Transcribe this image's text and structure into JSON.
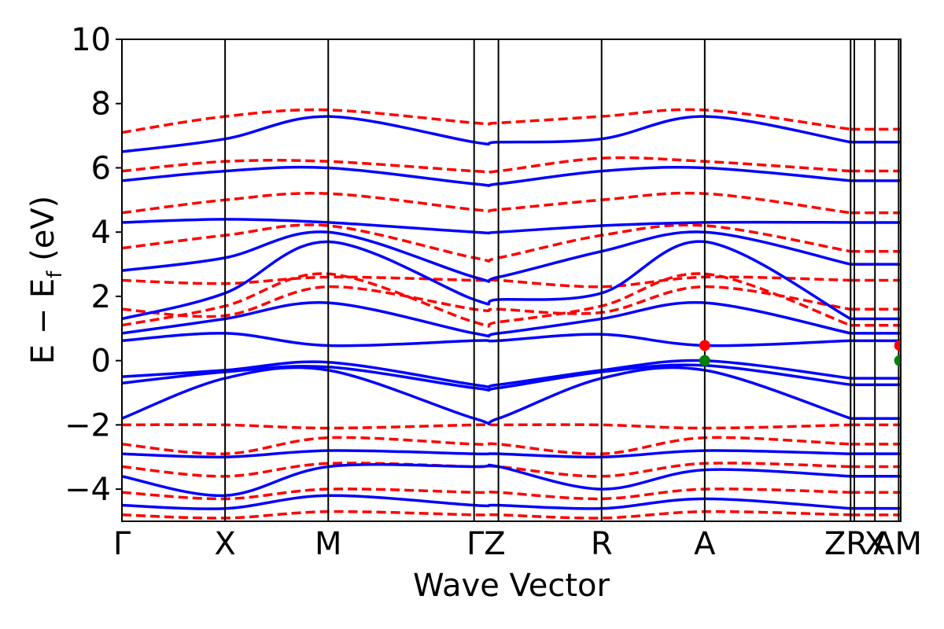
{
  "chart_data": {
    "type": "line",
    "xlabel": "Wave Vector",
    "ylabel_main": "E − E",
    "ylabel_sub": "f",
    "ylabel_tail": " (eV)",
    "ylim": [
      -5,
      10
    ],
    "yticks": [
      -4,
      -2,
      0,
      2,
      4,
      6,
      8,
      10
    ],
    "ytick_labels": [
      "−4",
      "−2",
      "0",
      "2",
      "4",
      "6",
      "8",
      "10"
    ],
    "grid": false,
    "kpoints": [
      {
        "label": "Γ",
        "x": 0.0
      },
      {
        "label": "X",
        "x": 1.0
      },
      {
        "label": "M",
        "x": 2.0
      },
      {
        "label": "Γ",
        "x": 3.414
      },
      {
        "label": "Z",
        "x": 3.65
      },
      {
        "label": "R",
        "x": 4.65
      },
      {
        "label": "A",
        "x": 5.65
      },
      {
        "label": "Z",
        "x": 7.064
      },
      {
        "label": "R",
        "x": 7.1
      },
      {
        "label": "X",
        "x": 7.3
      },
      {
        "label": "A",
        "x": 7.53
      },
      {
        "label": "M",
        "x": 7.55
      }
    ],
    "kpoint_display": [
      {
        "text": "Γ",
        "x": 0.0
      },
      {
        "text": "X",
        "x": 1.0
      },
      {
        "text": "M",
        "x": 2.0
      },
      {
        "text": "ΓZ",
        "x": 3.53
      },
      {
        "text": "R",
        "x": 4.65
      },
      {
        "text": "A",
        "x": 5.65
      },
      {
        "text": "ZR",
        "x": 7.02
      },
      {
        "text": "X",
        "x": 7.3
      },
      {
        "text": "AM",
        "x": 7.52
      }
    ],
    "segment_breaks": [
      7.064,
      7.3
    ],
    "series": [
      {
        "style": "solid",
        "color": "#0000ff"
      },
      {
        "style": "dashed",
        "color": "#ff0000"
      }
    ],
    "markers": [
      {
        "x": 5.65,
        "y": 0.47,
        "color": "#ff0000"
      },
      {
        "x": 5.65,
        "y": 0.0,
        "color": "#008000"
      },
      {
        "x": 7.54,
        "y": 0.47,
        "color": "#ff0000"
      },
      {
        "x": 7.54,
        "y": 0.0,
        "color": "#008000"
      }
    ],
    "bands_solid_sample": [
      {
        "name": "cb1",
        "points": [
          [
            0,
            0.62
          ],
          [
            1,
            0.85
          ],
          [
            2,
            0.47
          ],
          [
            3.414,
            0.62
          ],
          [
            3.65,
            0.62
          ],
          [
            4.65,
            0.82
          ],
          [
            5.65,
            0.47
          ],
          [
            7.064,
            0.62
          ]
        ]
      },
      {
        "name": "vb1",
        "points": [
          [
            0,
            -0.5
          ],
          [
            1,
            -0.3
          ],
          [
            2,
            -0.05
          ],
          [
            3.414,
            -0.75
          ],
          [
            3.65,
            -0.75
          ],
          [
            4.65,
            -0.3
          ],
          [
            5.65,
            0.0
          ],
          [
            7.064,
            -0.55
          ]
        ]
      },
      {
        "name": "vb2",
        "points": [
          [
            0,
            -0.7
          ],
          [
            1,
            -0.35
          ],
          [
            2,
            -0.2
          ],
          [
            3.414,
            -0.85
          ],
          [
            3.65,
            -0.85
          ],
          [
            4.65,
            -0.35
          ],
          [
            5.65,
            -0.15
          ],
          [
            7.064,
            -0.75
          ]
        ]
      },
      {
        "name": "vb_low",
        "points": [
          [
            0,
            -1.8
          ],
          [
            1,
            -0.55
          ],
          [
            2,
            -0.3
          ],
          [
            3.414,
            -1.8
          ],
          [
            3.65,
            -1.8
          ],
          [
            4.65,
            -0.55
          ],
          [
            5.65,
            -0.3
          ],
          [
            7.064,
            -1.8
          ]
        ]
      },
      {
        "name": "cb_dispersive",
        "points": [
          [
            0,
            1.3
          ],
          [
            1,
            2.1
          ],
          [
            2,
            3.7
          ],
          [
            3.414,
            1.9
          ],
          [
            3.65,
            1.9
          ],
          [
            4.65,
            2.1
          ],
          [
            5.65,
            3.7
          ],
          [
            7.064,
            1.3
          ]
        ]
      },
      {
        "name": "cb3",
        "points": [
          [
            0,
            0.85
          ],
          [
            1,
            1.3
          ],
          [
            2,
            1.8
          ],
          [
            3.414,
            0.85
          ],
          [
            3.65,
            0.85
          ],
          [
            4.65,
            1.3
          ],
          [
            5.65,
            1.8
          ],
          [
            7.064,
            0.85
          ]
        ]
      },
      {
        "name": "cb4",
        "points": [
          [
            0,
            2.8
          ],
          [
            1,
            3.2
          ],
          [
            2,
            4.0
          ],
          [
            3.414,
            2.6
          ],
          [
            3.65,
            2.6
          ],
          [
            4.65,
            3.4
          ],
          [
            5.65,
            4.0
          ],
          [
            7.064,
            3.0
          ]
        ]
      },
      {
        "name": "cb5",
        "points": [
          [
            0,
            4.3
          ],
          [
            1,
            4.4
          ],
          [
            2,
            4.3
          ],
          [
            3.414,
            4.0
          ],
          [
            3.65,
            4.0
          ],
          [
            4.65,
            4.2
          ],
          [
            5.65,
            4.3
          ],
          [
            7.064,
            4.3
          ]
        ]
      },
      {
        "name": "cb6",
        "points": [
          [
            0,
            5.6
          ],
          [
            1,
            5.9
          ],
          [
            2,
            6.0
          ],
          [
            3.414,
            5.5
          ],
          [
            3.65,
            5.5
          ],
          [
            4.65,
            5.9
          ],
          [
            5.65,
            6.0
          ],
          [
            7.064,
            5.6
          ]
        ]
      },
      {
        "name": "cb7",
        "points": [
          [
            0,
            6.5
          ],
          [
            1,
            6.9
          ],
          [
            2,
            7.6
          ],
          [
            3.414,
            6.8
          ],
          [
            3.65,
            6.8
          ],
          [
            4.65,
            6.9
          ],
          [
            5.65,
            7.6
          ],
          [
            7.064,
            6.8
          ]
        ]
      },
      {
        "name": "vb_deep1",
        "points": [
          [
            0,
            -2.9
          ],
          [
            1,
            -3.0
          ],
          [
            2,
            -2.8
          ],
          [
            3.414,
            -2.9
          ],
          [
            3.65,
            -2.9
          ],
          [
            4.65,
            -3.0
          ],
          [
            5.65,
            -2.8
          ],
          [
            7.064,
            -2.9
          ]
        ]
      },
      {
        "name": "vb_deep2",
        "points": [
          [
            0,
            -3.6
          ],
          [
            1,
            -4.2
          ],
          [
            2,
            -3.3
          ],
          [
            3.414,
            -3.3
          ],
          [
            3.65,
            -3.3
          ],
          [
            4.65,
            -4.0
          ],
          [
            5.65,
            -3.4
          ],
          [
            7.064,
            -3.6
          ]
        ]
      },
      {
        "name": "vb_deep3",
        "points": [
          [
            0,
            -4.5
          ],
          [
            1,
            -4.6
          ],
          [
            2,
            -4.2
          ],
          [
            3.414,
            -4.5
          ],
          [
            3.65,
            -4.5
          ],
          [
            4.65,
            -4.6
          ],
          [
            5.65,
            -4.3
          ],
          [
            7.064,
            -4.6
          ]
        ]
      }
    ],
    "bands_dashed_sample": [
      {
        "name": "r_cb1",
        "points": [
          [
            0,
            1.1
          ],
          [
            1,
            1.7
          ],
          [
            2,
            2.7
          ],
          [
            3.414,
            1.2
          ],
          [
            3.65,
            1.2
          ],
          [
            4.65,
            1.7
          ],
          [
            5.65,
            2.7
          ],
          [
            7.064,
            1.1
          ]
        ]
      },
      {
        "name": "r_cb2",
        "points": [
          [
            0,
            1.6
          ],
          [
            1,
            1.4
          ],
          [
            2,
            2.3
          ],
          [
            3.414,
            1.6
          ],
          [
            3.65,
            1.6
          ],
          [
            4.65,
            1.5
          ],
          [
            5.65,
            2.3
          ],
          [
            7.064,
            1.6
          ]
        ]
      },
      {
        "name": "r_cb3",
        "points": [
          [
            0,
            2.5
          ],
          [
            1,
            2.4
          ],
          [
            2,
            2.6
          ],
          [
            3.414,
            2.5
          ],
          [
            3.65,
            2.5
          ],
          [
            4.65,
            2.3
          ],
          [
            5.65,
            2.6
          ],
          [
            7.064,
            2.5
          ]
        ]
      },
      {
        "name": "r_cb4",
        "points": [
          [
            0,
            3.5
          ],
          [
            1,
            3.9
          ],
          [
            2,
            4.2
          ],
          [
            3.414,
            3.2
          ],
          [
            3.65,
            3.2
          ],
          [
            4.65,
            3.9
          ],
          [
            5.65,
            4.2
          ],
          [
            7.064,
            3.4
          ]
        ]
      },
      {
        "name": "r_cb5",
        "points": [
          [
            0,
            4.6
          ],
          [
            1,
            5.0
          ],
          [
            2,
            5.2
          ],
          [
            3.414,
            4.7
          ],
          [
            3.65,
            4.7
          ],
          [
            4.65,
            5.0
          ],
          [
            5.65,
            5.2
          ],
          [
            7.064,
            4.6
          ]
        ]
      },
      {
        "name": "r_cb6",
        "points": [
          [
            0,
            5.9
          ],
          [
            1,
            6.2
          ],
          [
            2,
            6.2
          ],
          [
            3.414,
            5.9
          ],
          [
            3.65,
            5.9
          ],
          [
            4.65,
            6.3
          ],
          [
            5.65,
            6.2
          ],
          [
            7.064,
            5.9
          ]
        ]
      },
      {
        "name": "r_cb7",
        "points": [
          [
            0,
            7.1
          ],
          [
            1,
            7.6
          ],
          [
            2,
            7.8
          ],
          [
            3.414,
            7.4
          ],
          [
            3.65,
            7.4
          ],
          [
            4.65,
            7.6
          ],
          [
            5.65,
            7.8
          ],
          [
            7.064,
            7.2
          ]
        ]
      },
      {
        "name": "r_vb1",
        "points": [
          [
            0,
            -2.0
          ],
          [
            1,
            -2.0
          ],
          [
            2,
            -2.1
          ],
          [
            3.414,
            -2.0
          ],
          [
            3.65,
            -2.0
          ],
          [
            4.65,
            -2.0
          ],
          [
            5.65,
            -2.1
          ],
          [
            7.064,
            -2.0
          ]
        ]
      },
      {
        "name": "r_vb2",
        "points": [
          [
            0,
            -2.6
          ],
          [
            1,
            -2.9
          ],
          [
            2,
            -2.4
          ],
          [
            3.414,
            -2.6
          ],
          [
            3.65,
            -2.6
          ],
          [
            4.65,
            -2.9
          ],
          [
            5.65,
            -2.4
          ],
          [
            7.064,
            -2.6
          ]
        ]
      },
      {
        "name": "r_vb3",
        "points": [
          [
            0,
            -3.3
          ],
          [
            1,
            -3.6
          ],
          [
            2,
            -3.2
          ],
          [
            3.414,
            -3.3
          ],
          [
            3.65,
            -3.3
          ],
          [
            4.65,
            -3.6
          ],
          [
            5.65,
            -3.2
          ],
          [
            7.064,
            -3.3
          ]
        ]
      },
      {
        "name": "r_vb4",
        "points": [
          [
            0,
            -4.1
          ],
          [
            1,
            -4.3
          ],
          [
            2,
            -4.0
          ],
          [
            3.414,
            -4.1
          ],
          [
            3.65,
            -4.1
          ],
          [
            4.65,
            -4.3
          ],
          [
            5.65,
            -4.0
          ],
          [
            7.064,
            -4.1
          ]
        ]
      },
      {
        "name": "r_vb5",
        "points": [
          [
            0,
            -4.8
          ],
          [
            1,
            -4.9
          ],
          [
            2,
            -4.7
          ],
          [
            3.414,
            -4.8
          ],
          [
            3.65,
            -4.8
          ],
          [
            4.65,
            -4.9
          ],
          [
            5.65,
            -4.7
          ],
          [
            7.064,
            -4.8
          ]
        ]
      }
    ]
  }
}
